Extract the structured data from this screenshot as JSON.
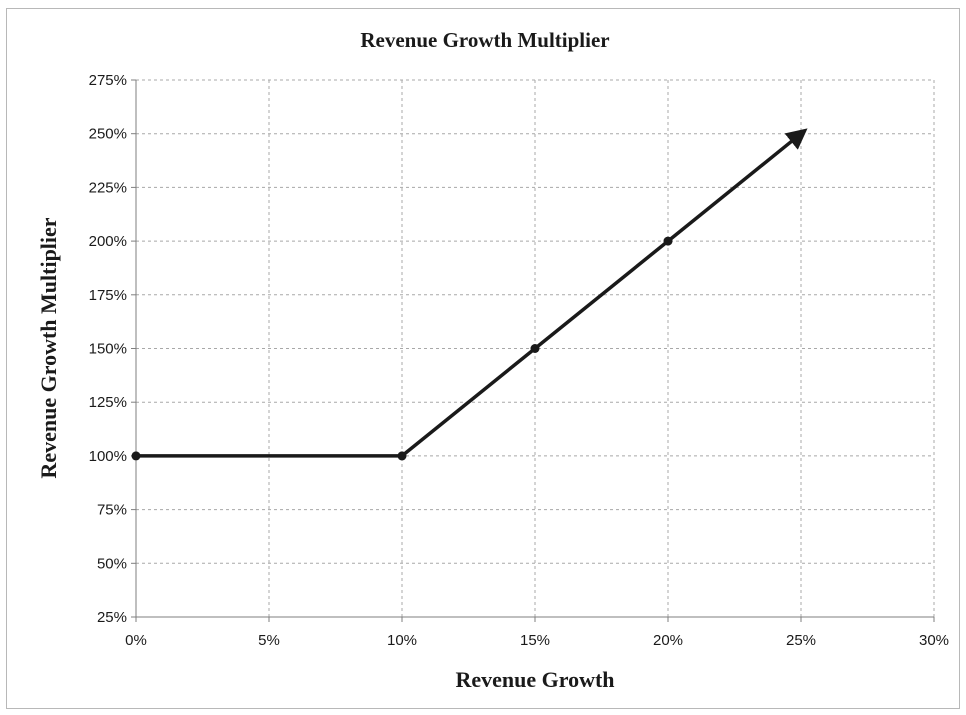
{
  "chart_data": {
    "type": "line",
    "title": "Revenue Growth Multiplier",
    "xlabel": "Revenue Growth",
    "ylabel": "Revenue Growth Multiplier",
    "x_ticks": [
      "0%",
      "5%",
      "10%",
      "15%",
      "20%",
      "25%",
      "30%"
    ],
    "y_ticks": [
      "25%",
      "50%",
      "75%",
      "100%",
      "125%",
      "150%",
      "175%",
      "200%",
      "225%",
      "250%",
      "275%"
    ],
    "xlim": [
      0,
      30
    ],
    "ylim": [
      25,
      275
    ],
    "grid": true,
    "legend": "none",
    "series": [
      {
        "color": "#1a1a1a",
        "points": [
          {
            "x": 0,
            "y": 100
          },
          {
            "x": 10,
            "y": 100
          },
          {
            "x": 15,
            "y": 150
          },
          {
            "x": 20,
            "y": 200
          }
        ],
        "arrow_to": {
          "x": 25,
          "y": 250
        }
      }
    ]
  }
}
